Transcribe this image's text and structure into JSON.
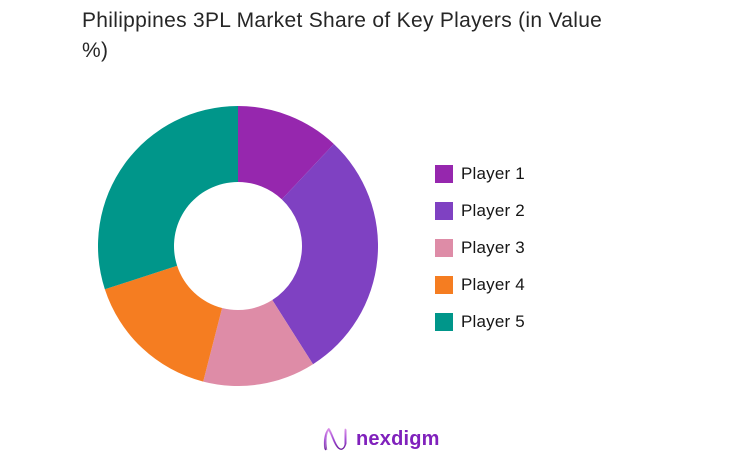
{
  "title": "Philippines 3PL Market Share of Key Players (in Value\n%)",
  "chart_data": {
    "type": "pie",
    "subtype": "donut",
    "title": "Philippines 3PL Market Share of Key Players (in Value %)",
    "unit": "percent_of_value",
    "categories": [
      "Player 1",
      "Player 2",
      "Player 3",
      "Player 4",
      "Player 5"
    ],
    "values": [
      12,
      29,
      13,
      16,
      30
    ],
    "series": [
      {
        "name": "Player 1",
        "value": 12,
        "color": "#9627AE"
      },
      {
        "name": "Player 2",
        "value": 29,
        "color": "#7F41C2"
      },
      {
        "name": "Player 3",
        "value": 13,
        "color": "#DE8CA7"
      },
      {
        "name": "Player 4",
        "value": 16,
        "color": "#F57D21"
      },
      {
        "name": "Player 5",
        "value": 30,
        "color": "#00968A"
      }
    ],
    "start_angle_deg": 0,
    "direction": "clockwise",
    "inner_radius_ratio": 0.46,
    "legend_position": "right",
    "data_labels": "none"
  },
  "footer": {
    "logo_text": "nexdigm",
    "logo_icon": "nexdigm-n-wave-icon",
    "logo_color": "#8021BC"
  }
}
